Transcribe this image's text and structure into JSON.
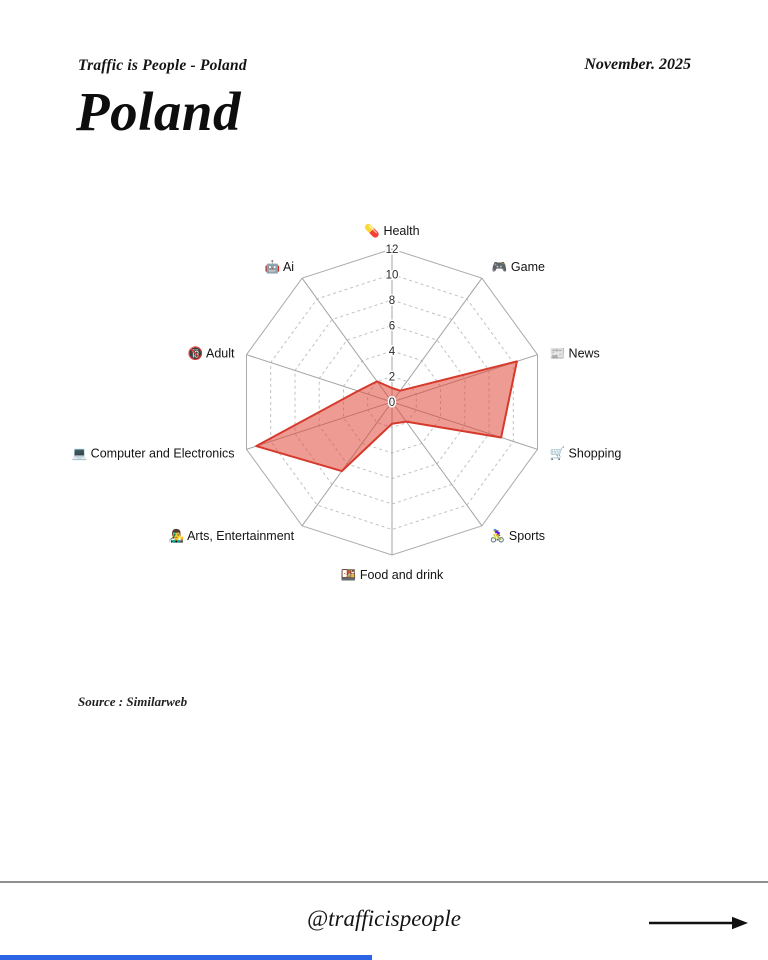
{
  "header": {
    "brand": "Traffic is People - Poland",
    "date": "November. 2025",
    "title": "Poland"
  },
  "chart_data": {
    "type": "radar",
    "title": "Poland website traffic categories",
    "categories": [
      "Health",
      "Game",
      "News",
      "Shopping",
      "Sports",
      "Food and drink",
      "Arts, Entertainment",
      "Computer and Electronics",
      "Adult",
      "Ai"
    ],
    "icons": [
      "💊",
      "🎮",
      "📰",
      "🛒",
      "🚴‍♀️",
      "🍱",
      "👨‍🎤",
      "💻",
      "🔞",
      "🤖"
    ],
    "series": [
      {
        "name": "Poland",
        "values": [
          1.1,
          1.1,
          10.3,
          9,
          1.9,
          1.7,
          6.7,
          11.2,
          2.8,
          2
        ]
      }
    ],
    "r_axis": {
      "min": 0,
      "max": 12,
      "ticks": [
        0,
        2,
        4,
        6,
        8,
        10,
        12
      ]
    },
    "grid": "dashed decagon rings, solid spokes, legend off",
    "colors": {
      "fill": "#e0483a",
      "fill_opacity": 0.55,
      "stroke": "#d63a2c",
      "grid": "#c2c2c2",
      "outer": "#ababab",
      "spoke": "#a3a3a3"
    }
  },
  "source_label": "Source : Similarweb",
  "footer": {
    "handle": "@trafficispeople"
  },
  "accent": {
    "bottom_bar_color": "#2c64e3"
  }
}
